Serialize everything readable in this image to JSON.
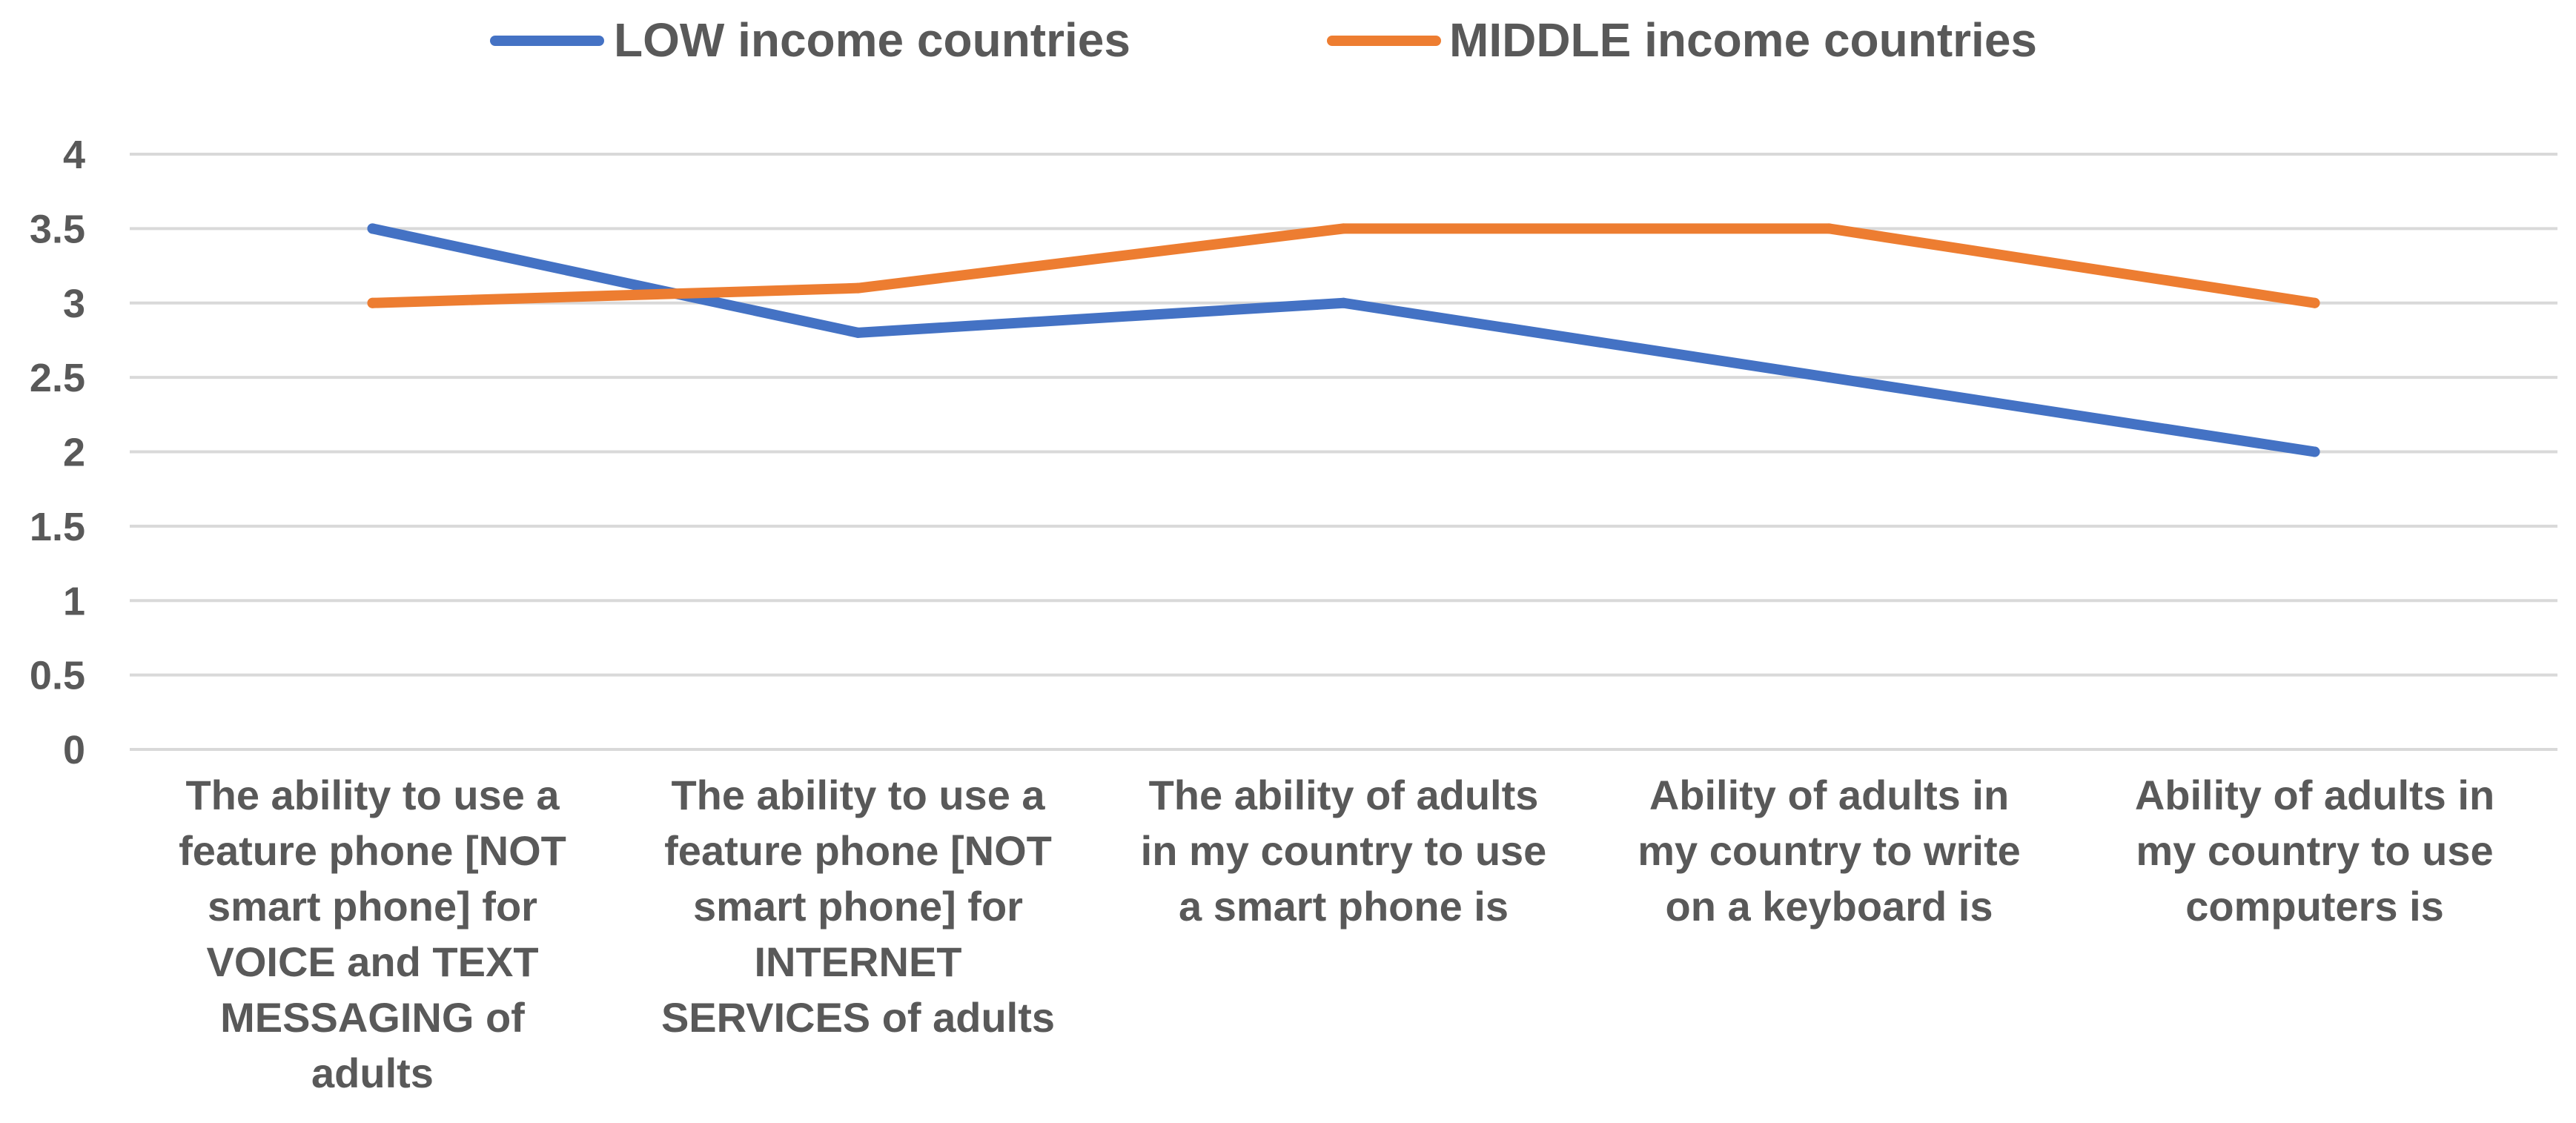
{
  "chart_data": {
    "type": "line",
    "title": "",
    "xlabel": "",
    "ylabel": "",
    "categories": [
      [
        "The ability to use a",
        "feature phone [NOT",
        "smart phone] for",
        "VOICE and TEXT",
        "MESSAGING of",
        "adults"
      ],
      [
        "The ability to use a",
        "feature phone [NOT",
        "smart phone] for",
        "INTERNET",
        "SERVICES of adults"
      ],
      [
        "The ability of adults",
        "in my country to use",
        "a smart phone is"
      ],
      [
        "Ability of adults in",
        "my country to write",
        "on a keyboard is"
      ],
      [
        "Ability of adults in",
        "my country to use",
        "computers is"
      ]
    ],
    "ylim": [
      0,
      4
    ],
    "yticks": [
      "0",
      "0.5",
      "1",
      "1.5",
      "2",
      "2.5",
      "3",
      "3.5",
      "4"
    ],
    "grid": true,
    "legend_position": "top",
    "series": [
      {
        "name": "LOW income countries",
        "color": "#4472C4",
        "values": [
          3.5,
          2.8,
          3.0,
          2.5,
          2.0
        ]
      },
      {
        "name": "MIDDLE income countries",
        "color": "#ED7D31",
        "values": [
          3.0,
          3.1,
          3.5,
          3.5,
          3.0
        ]
      }
    ]
  }
}
